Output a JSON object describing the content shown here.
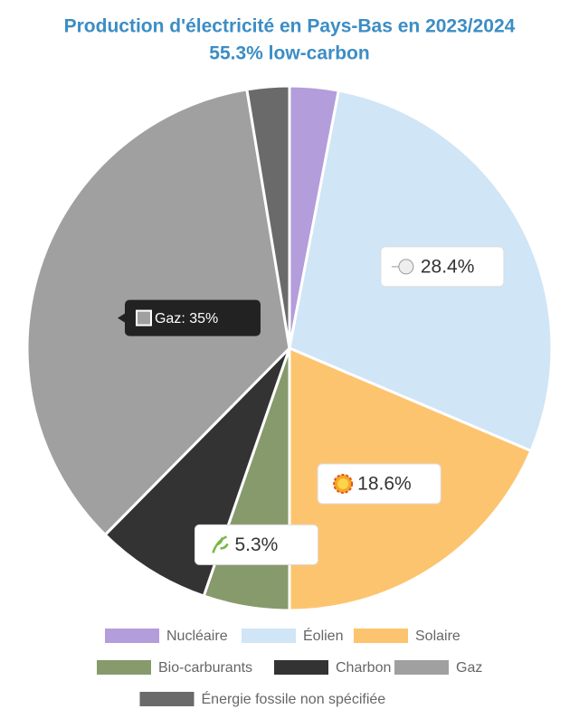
{
  "chart_data": {
    "type": "pie",
    "title": "Production d'électricité en Pays-Bas en 2023/2024",
    "subtitle": "55.3% low-carbon",
    "categories": [
      "Nucléaire",
      "Éolien",
      "Solaire",
      "Bio-carburants",
      "Charbon",
      "Gaz",
      "Énergie fossile non spécifiée"
    ],
    "values": [
      3.0,
      28.4,
      18.6,
      5.3,
      7.1,
      35,
      2.6
    ],
    "value_labels": [
      null,
      "28.4%",
      "18.6%",
      "5.3%",
      null,
      null,
      null
    ],
    "colors": [
      "#b39ddb",
      "#d0e5f6",
      "#fdc46f",
      "#869a6c",
      "#333333",
      "#a0a0a0",
      "#6a6a6a"
    ],
    "tooltip": "Gaz: 35%"
  }
}
